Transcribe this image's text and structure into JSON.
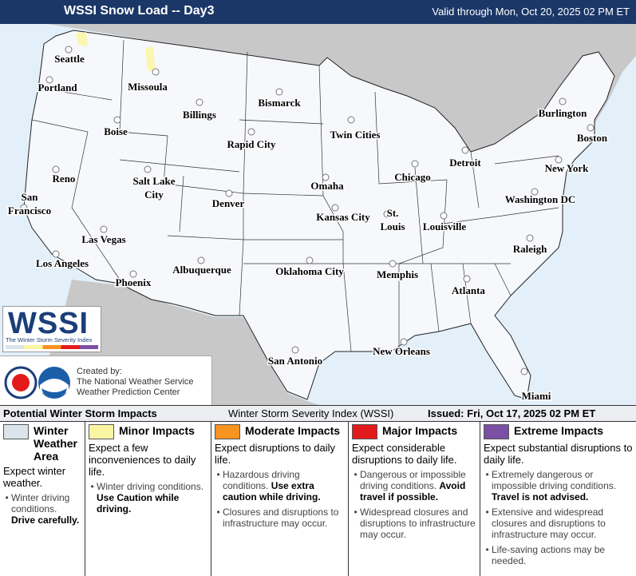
{
  "header": {
    "title": "WSSI Snow Load -- Day3",
    "valid": "Valid through Mon, Oct 20, 2025 02 PM ET"
  },
  "cities": [
    [
      "Seattle"
    ],
    [
      "Portland"
    ],
    [
      "Missoula"
    ],
    [
      "Bismarck"
    ],
    [
      "Billings"
    ],
    [
      "Boise"
    ],
    [
      "Burlington"
    ],
    [
      "Twin Cities"
    ],
    [
      "Rapid City"
    ],
    [
      "Boston"
    ],
    [
      "Detroit"
    ],
    [
      "Reno"
    ],
    [
      "Salt Lake",
      "City"
    ],
    [
      "Chicago"
    ],
    [
      "New York"
    ],
    [
      "Omaha"
    ],
    [
      "San",
      "Francisco"
    ],
    [
      "Denver"
    ],
    [
      "Washington DC"
    ],
    [
      "Kansas City"
    ],
    [
      "St.",
      "Louis"
    ],
    [
      "Louisville"
    ],
    [
      "Las Vegas"
    ],
    [
      "Raleigh"
    ],
    [
      "Los Angeles"
    ],
    [
      "Oklahoma City"
    ],
    [
      "Albuquerque"
    ],
    [
      "Memphis"
    ],
    [
      "Atlanta"
    ],
    [
      "Phoenix"
    ],
    [
      "New Orleans"
    ],
    [
      "San Antonio"
    ],
    [
      "Miami"
    ]
  ],
  "logo": {
    "title": "WSSI",
    "subtitle": "The Winter Storm Severity Index"
  },
  "credits": {
    "intro": "Created by:",
    "line1": "The National Weather Service",
    "line2": "Weather Prediction Center"
  },
  "legend": {
    "left": "Potential Winter Storm Impacts",
    "center": "Winter Storm Severity Index (WSSI)",
    "right": "Issued: Fri, Oct 17, 2025 02 PM ET",
    "columns": [
      {
        "title": "Winter Weather Area",
        "color": "#dce3ea",
        "summary": "Expect winter weather.",
        "bullets": [
          {
            "text": "Winter driving conditions. ",
            "bold": "Drive carefully."
          }
        ]
      },
      {
        "title": "Minor Impacts",
        "color": "#faf5a3",
        "summary": "Expect a few inconveniences to daily life.",
        "bullets": [
          {
            "text": "Winter driving conditions. ",
            "bold": "Use Caution while driving."
          }
        ]
      },
      {
        "title": "Moderate Impacts",
        "color": "#f7931e",
        "summary": "Expect disruptions to daily life.",
        "bullets": [
          {
            "text": "Hazardous driving conditions. ",
            "bold": "Use extra caution while driving."
          },
          {
            "text": "Closures and disruptions to infrastructure may occur."
          }
        ]
      },
      {
        "title": "Major Impacts",
        "color": "#e31a1c",
        "summary": "Expect considerable disruptions to daily life.",
        "bullets": [
          {
            "text": "Dangerous or impossible driving conditions. ",
            "bold": "Avoid travel if possible."
          },
          {
            "text": "Widespread closures and disruptions to infrastructure may occur."
          }
        ]
      },
      {
        "title": "Extreme Impacts",
        "color": "#7b4fa3",
        "summary": "Expect substantial disruptions to daily life.",
        "bullets": [
          {
            "text": "Extremely dangerous or impossible driving conditions. ",
            "bold": "Travel is not advised."
          },
          {
            "text": "Extensive and widespread closures and disruptions to infrastructure may occur."
          },
          {
            "text": "Life-saving actions may be needed."
          }
        ]
      }
    ]
  }
}
